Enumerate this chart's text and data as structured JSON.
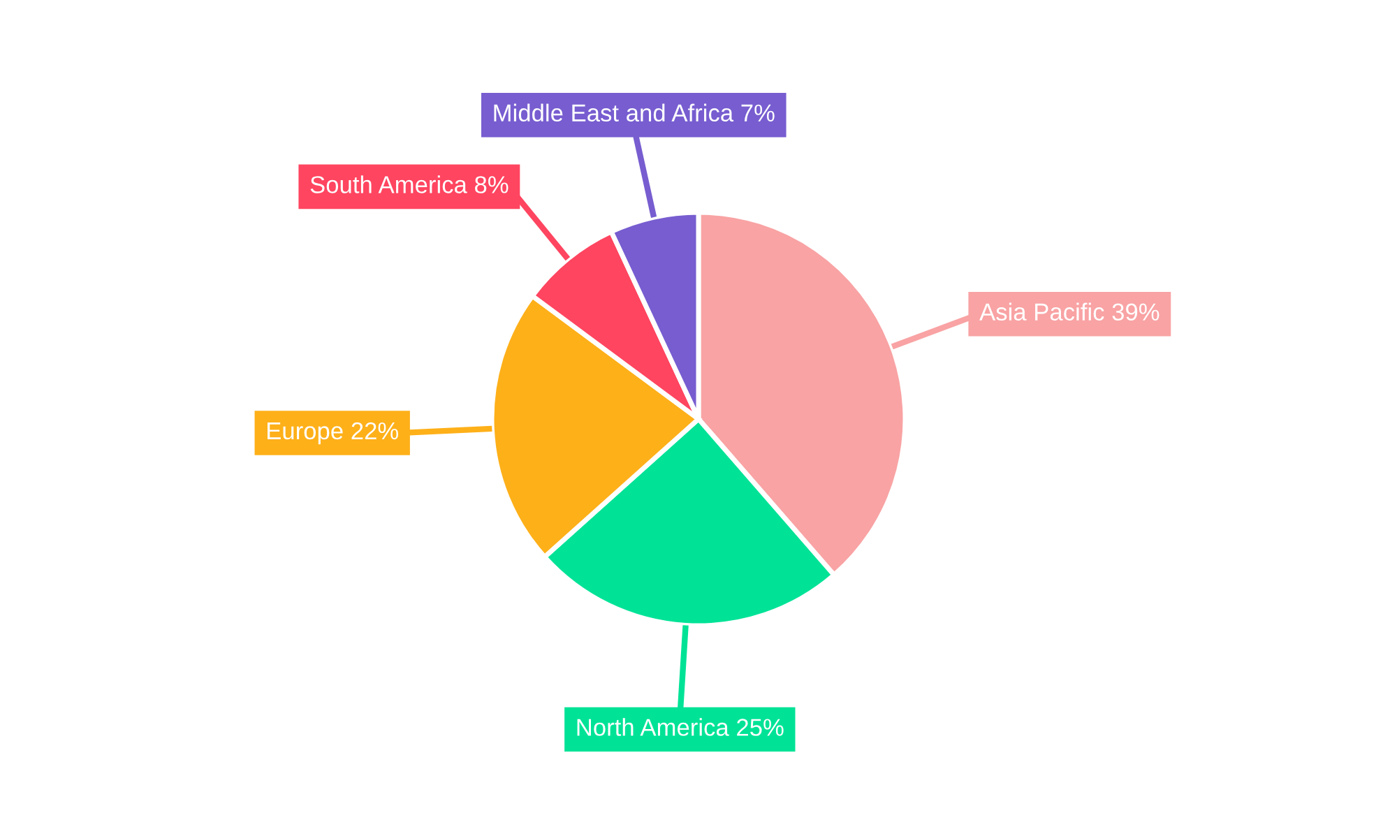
{
  "chart_data": {
    "type": "pie",
    "categories": [
      "Asia Pacific",
      "North America",
      "Europe",
      "South America",
      "Middle East and Africa"
    ],
    "values": [
      39,
      25,
      22,
      8,
      7
    ],
    "colors": [
      "#f9a3a4",
      "#00e396",
      "#feb019",
      "#ff4560",
      "#775dd0"
    ],
    "value_labels": [
      "39%",
      "25%",
      "22%",
      "8%",
      "7%"
    ],
    "legend": false
  }
}
